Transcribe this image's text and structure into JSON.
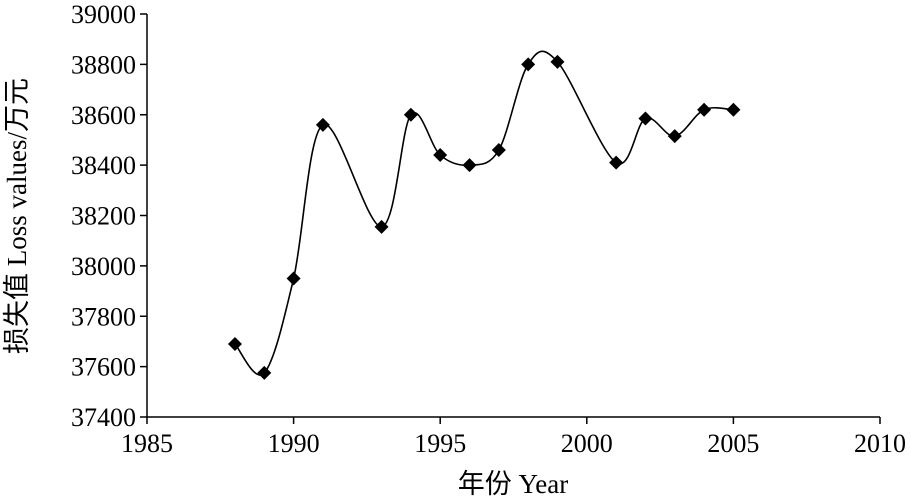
{
  "chart_data": {
    "type": "line",
    "title": "",
    "xlabel": "年份 Year",
    "ylabel": "损失值 Loss values/万元",
    "xlim": [
      1985,
      2010
    ],
    "ylim": [
      37400,
      39000
    ],
    "xticks": [
      1985,
      1990,
      1995,
      2000,
      2005,
      2010
    ],
    "yticks": [
      37400,
      37600,
      37800,
      38000,
      38200,
      38400,
      38600,
      38800,
      39000
    ],
    "grid": false,
    "legend": "none",
    "line_style": "smoothed",
    "marker": "diamond",
    "color": "#000000",
    "series": [
      {
        "x": [
          1988,
          1989,
          1990,
          1991,
          1993,
          1994,
          1995,
          1996,
          1997,
          1998,
          1999,
          2001,
          2002,
          2003,
          2004,
          2005
        ],
        "y": [
          37690,
          37575,
          37950,
          38560,
          38155,
          38600,
          38440,
          38400,
          38460,
          38800,
          38810,
          38410,
          38585,
          38515,
          38620,
          38620
        ]
      }
    ]
  }
}
